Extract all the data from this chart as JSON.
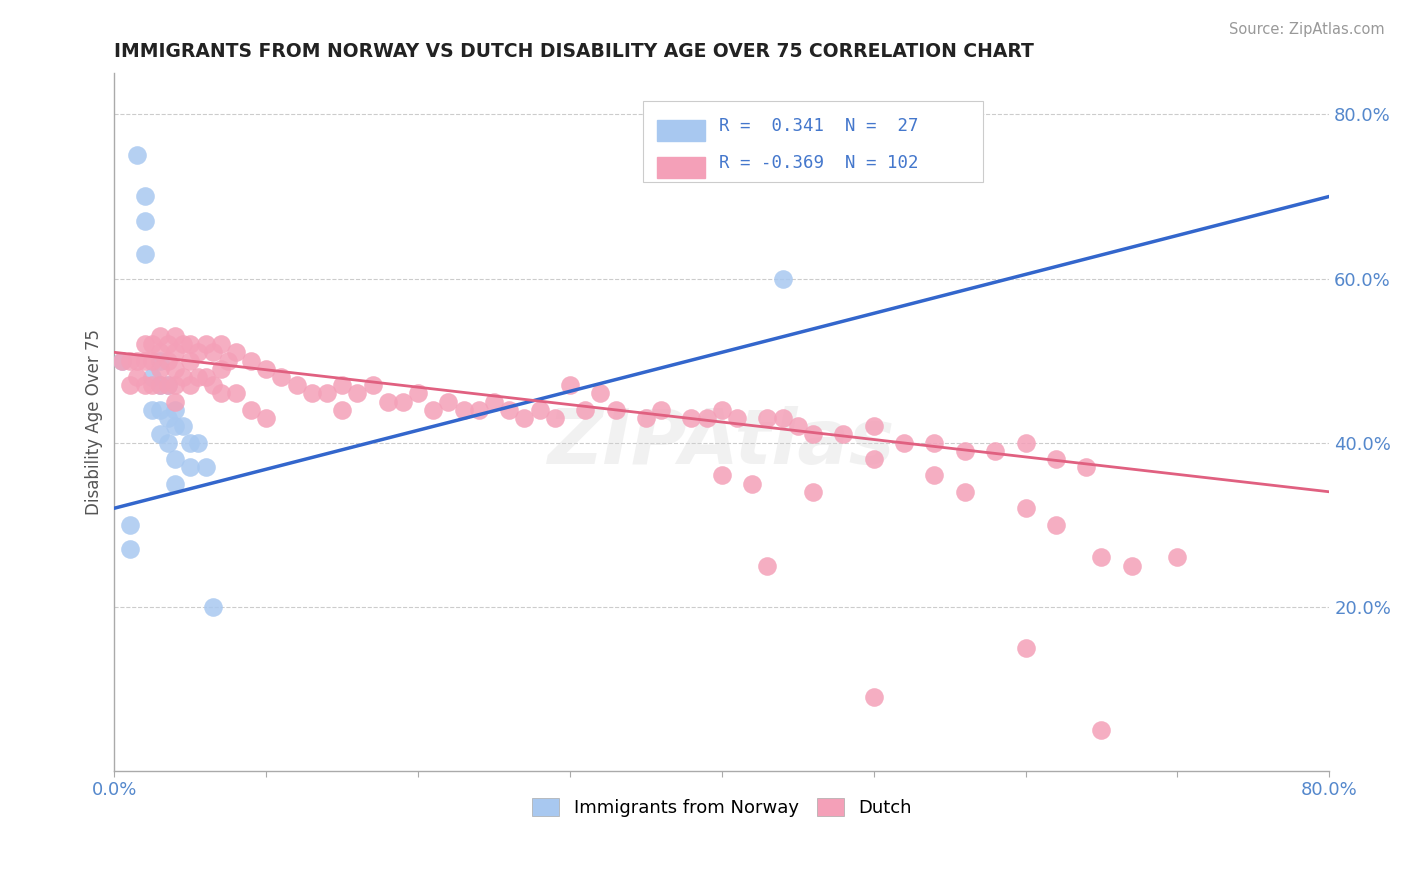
{
  "title": "IMMIGRANTS FROM NORWAY VS DUTCH DISABILITY AGE OVER 75 CORRELATION CHART",
  "source": "Source: ZipAtlas.com",
  "ylabel": "Disability Age Over 75",
  "xlim": [
    0.0,
    0.8
  ],
  "ylim": [
    0.0,
    0.85
  ],
  "norway_color": "#a8c8f0",
  "dutch_color": "#f4a0b8",
  "norway_line_color": "#3366cc",
  "dutch_line_color": "#e06080",
  "background_color": "#ffffff",
  "grid_color": "#cccccc",
  "watermark": "ZIPAtlas",
  "norway_points_x": [
    0.005,
    0.01,
    0.01,
    0.015,
    0.02,
    0.02,
    0.02,
    0.025,
    0.025,
    0.03,
    0.03,
    0.03,
    0.03,
    0.035,
    0.035,
    0.035,
    0.04,
    0.04,
    0.04,
    0.04,
    0.045,
    0.05,
    0.05,
    0.055,
    0.06,
    0.065,
    0.44
  ],
  "norway_points_y": [
    0.5,
    0.3,
    0.27,
    0.75,
    0.7,
    0.67,
    0.63,
    0.48,
    0.44,
    0.5,
    0.47,
    0.44,
    0.41,
    0.47,
    0.43,
    0.4,
    0.44,
    0.42,
    0.38,
    0.35,
    0.42,
    0.4,
    0.37,
    0.4,
    0.37,
    0.2,
    0.6
  ],
  "dutch_points_x": [
    0.005,
    0.01,
    0.01,
    0.015,
    0.015,
    0.02,
    0.02,
    0.02,
    0.025,
    0.025,
    0.025,
    0.03,
    0.03,
    0.03,
    0.03,
    0.035,
    0.035,
    0.035,
    0.04,
    0.04,
    0.04,
    0.04,
    0.04,
    0.045,
    0.045,
    0.05,
    0.05,
    0.05,
    0.055,
    0.055,
    0.06,
    0.06,
    0.065,
    0.065,
    0.07,
    0.07,
    0.07,
    0.075,
    0.08,
    0.08,
    0.09,
    0.09,
    0.1,
    0.1,
    0.11,
    0.12,
    0.13,
    0.14,
    0.15,
    0.15,
    0.16,
    0.17,
    0.18,
    0.19,
    0.2,
    0.21,
    0.22,
    0.23,
    0.24,
    0.25,
    0.26,
    0.27,
    0.28,
    0.29,
    0.3,
    0.31,
    0.32,
    0.33,
    0.35,
    0.36,
    0.38,
    0.39,
    0.4,
    0.41,
    0.43,
    0.44,
    0.45,
    0.46,
    0.48,
    0.5,
    0.52,
    0.54,
    0.56,
    0.58,
    0.6,
    0.62,
    0.64,
    0.4,
    0.42,
    0.46,
    0.5,
    0.54,
    0.56,
    0.6,
    0.62,
    0.65,
    0.67,
    0.7,
    0.43,
    0.5,
    0.6,
    0.65
  ],
  "dutch_points_y": [
    0.5,
    0.5,
    0.47,
    0.5,
    0.48,
    0.52,
    0.5,
    0.47,
    0.52,
    0.5,
    0.47,
    0.53,
    0.51,
    0.49,
    0.47,
    0.52,
    0.5,
    0.47,
    0.53,
    0.51,
    0.49,
    0.47,
    0.45,
    0.52,
    0.48,
    0.52,
    0.5,
    0.47,
    0.51,
    0.48,
    0.52,
    0.48,
    0.51,
    0.47,
    0.52,
    0.49,
    0.46,
    0.5,
    0.51,
    0.46,
    0.5,
    0.44,
    0.49,
    0.43,
    0.48,
    0.47,
    0.46,
    0.46,
    0.47,
    0.44,
    0.46,
    0.47,
    0.45,
    0.45,
    0.46,
    0.44,
    0.45,
    0.44,
    0.44,
    0.45,
    0.44,
    0.43,
    0.44,
    0.43,
    0.47,
    0.44,
    0.46,
    0.44,
    0.43,
    0.44,
    0.43,
    0.43,
    0.44,
    0.43,
    0.43,
    0.43,
    0.42,
    0.41,
    0.41,
    0.42,
    0.4,
    0.4,
    0.39,
    0.39,
    0.4,
    0.38,
    0.37,
    0.36,
    0.35,
    0.34,
    0.38,
    0.36,
    0.34,
    0.32,
    0.3,
    0.26,
    0.25,
    0.26,
    0.25,
    0.09,
    0.15,
    0.05
  ],
  "norway_line_x": [
    0.0,
    0.8
  ],
  "norway_line_y": [
    0.32,
    0.7
  ],
  "dutch_line_x": [
    0.0,
    0.8
  ],
  "dutch_line_y": [
    0.51,
    0.34
  ]
}
